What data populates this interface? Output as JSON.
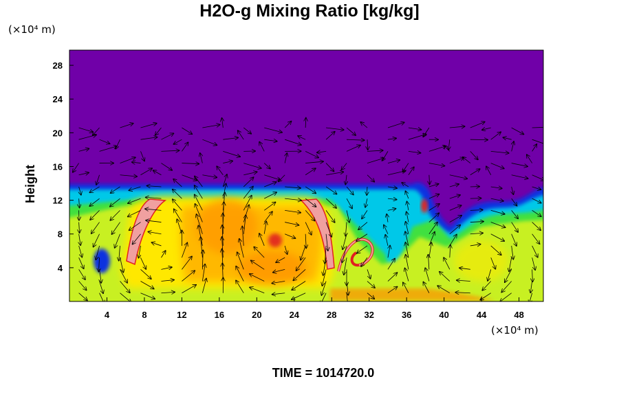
{
  "chart_data": {
    "type": "heatmap",
    "title": "H2O-g Mixing Ratio [kg/kg]",
    "xlabel": "",
    "ylabel": "Height",
    "x_unit_label": "(×10⁴ m)",
    "y_unit_label": "(×10⁴ m)",
    "xlim": [
      0,
      50.6
    ],
    "ylim": [
      0,
      29.8
    ],
    "x_ticks": [
      4,
      8,
      12,
      16,
      20,
      24,
      28,
      32,
      36,
      40,
      44,
      48
    ],
    "y_ticks": [
      4,
      8,
      12,
      16,
      20,
      24,
      28
    ],
    "overlay": "wind vectors",
    "color_bands": [
      {
        "name": "dry",
        "color": "#7000a8"
      },
      {
        "name": "blue",
        "color": "#1030e0"
      },
      {
        "name": "cyan",
        "color": "#00c8e8"
      },
      {
        "name": "green",
        "color": "#40e040"
      },
      {
        "name": "yellow-green",
        "color": "#c8f020"
      },
      {
        "name": "yellow",
        "color": "#ffe800"
      },
      {
        "name": "orange",
        "color": "#ffb000"
      },
      {
        "name": "red",
        "color": "#e02020"
      },
      {
        "name": "pink",
        "color": "#f0a0a0"
      }
    ],
    "moist_layer_top": 14,
    "plumes": [
      {
        "x": 6.5,
        "y_top": 13,
        "color": "pink"
      },
      {
        "x": 27.5,
        "y_top": 13,
        "color": "pink"
      },
      {
        "x": 30.5,
        "y_top": 8,
        "color": "red"
      },
      {
        "x": 38.5,
        "y_top": 12,
        "color": "red"
      }
    ],
    "footer": "TIME = 1014720.0"
  }
}
